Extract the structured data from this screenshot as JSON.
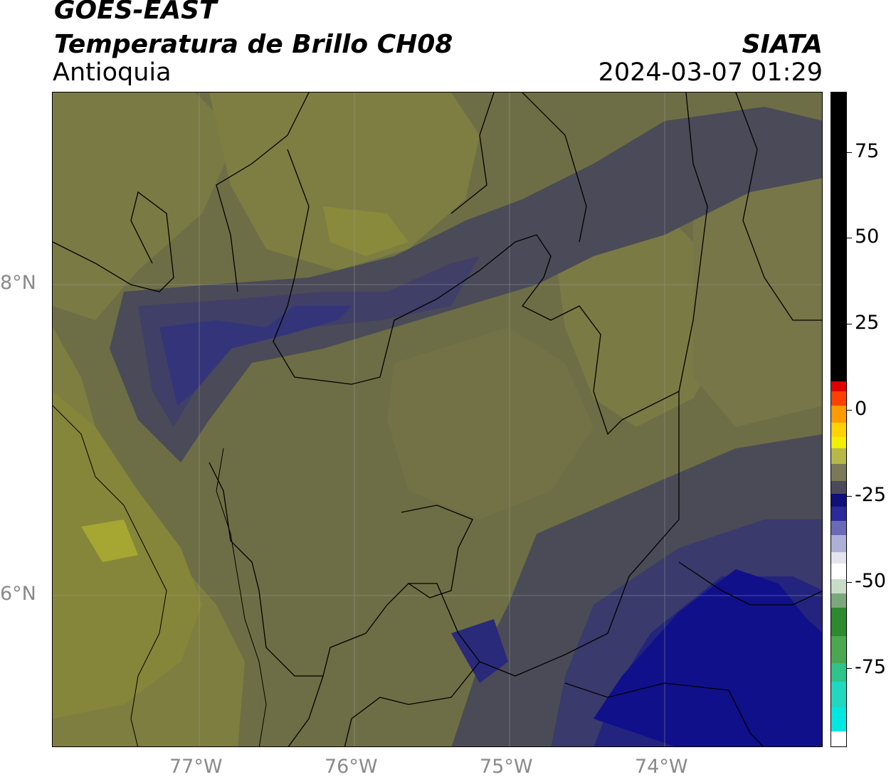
{
  "header": {
    "satellite": "GOES-EAST",
    "product": "Temperatura de Brillo CH08",
    "region": "Antioquia",
    "organization": "SIATA",
    "datetime": "2024-03-07 01:29"
  },
  "map": {
    "lon_range": [
      -77.95,
      -72.98
    ],
    "lat_range": [
      5.05,
      9.27
    ],
    "lon_ticks": [
      {
        "value": -77,
        "label": "77°W"
      },
      {
        "value": -76,
        "label": "76°W"
      },
      {
        "value": -75,
        "label": "75°W"
      },
      {
        "value": -74,
        "label": "74°W"
      }
    ],
    "lat_ticks": [
      {
        "value": 8,
        "label": "8°N"
      },
      {
        "value": 6,
        "label": "6°N"
      }
    ],
    "gridlines": true,
    "colors": {
      "olive_warm": "#8a8a3a",
      "olive": "#7a7a44",
      "gray_olive": "#5e5e4e",
      "gray": "#4d4d50",
      "slate_blue": "#3f3f66",
      "blue": "#2e2e7a",
      "navy": "#1a1a8a",
      "deep_navy": "#0c0c80",
      "bright_olive": "#a6a632",
      "border": "#000000"
    }
  },
  "colorbar": {
    "orientation": "vertical",
    "ticks": [
      {
        "value": 75,
        "label": "75"
      },
      {
        "value": 50,
        "label": "50"
      },
      {
        "value": 25,
        "label": "25"
      },
      {
        "value": 0,
        "label": "0"
      },
      {
        "value": -25,
        "label": "-25"
      },
      {
        "value": -50,
        "label": "-50"
      },
      {
        "value": -75,
        "label": "-75"
      }
    ],
    "range": [
      -95,
      95
    ]
  }
}
